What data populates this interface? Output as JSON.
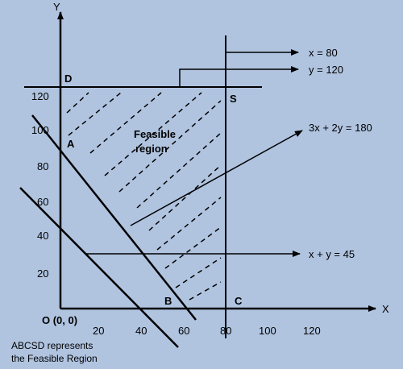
{
  "axes": {
    "x_label": "X",
    "y_label": "Y",
    "origin_label": "O (0, 0)",
    "x_ticks": [
      "20",
      "40",
      "60",
      "80",
      "100",
      "120"
    ],
    "y_ticks": [
      "20",
      "40",
      "60",
      "80",
      "100",
      "120"
    ]
  },
  "points": {
    "a": "A",
    "b": "B",
    "c": "C",
    "d": "D",
    "s": "S"
  },
  "region_label_line1": "Feasible",
  "region_label_line2": "region",
  "callouts": {
    "x_eq": "x = 80",
    "y_eq": "y = 120",
    "c1": "3x + 2y  = 180",
    "c2": "x + y  = 45"
  },
  "caption_line1": "ABCSD represents",
  "caption_line2": "the Feasible Region",
  "colors": {
    "background": "#b0c4e0",
    "ink": "#000000"
  }
}
